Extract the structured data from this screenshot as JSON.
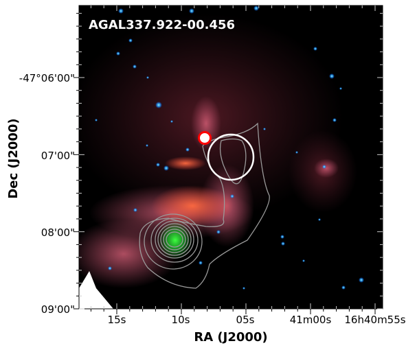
{
  "figure": {
    "title": "AGAL337.922-00.456",
    "xlabel": "RA (J2000)",
    "ylabel": "Dec (J2000)",
    "x_ticks": [
      "15s",
      "10s",
      "05s",
      "41m00s",
      "16h40m55s"
    ],
    "y_ticks": [
      "-47°06'00\"",
      "07'00\"",
      "08'00\"",
      "09'00\""
    ],
    "colors": {
      "background": "#000000",
      "nebula_red": "#e0504a",
      "nebula_pink": "#c86070",
      "stars": "#30c8ff",
      "green_source": "#30ff50",
      "contours": "#9a9a9a",
      "red_marker": "#ff0000",
      "white_marker": "#ffffff"
    }
  }
}
